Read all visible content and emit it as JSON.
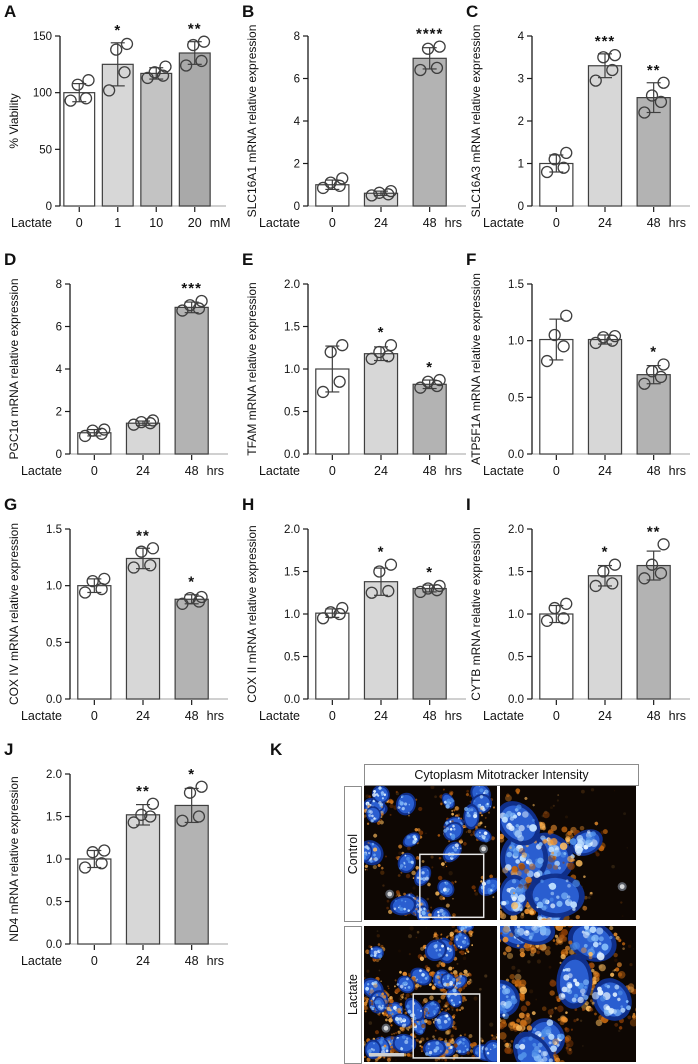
{
  "figure": {
    "background": "#ffffff",
    "bar_outline": "#3f3f3f",
    "baseline_color": "#b5b5b5"
  },
  "chart_data": [
    {
      "type": "bar",
      "panel": "A",
      "ylabel": "% Viability",
      "x_prefix": "Lactate",
      "x_unit": "mM",
      "categories": [
        "0",
        "1",
        "10",
        "20"
      ],
      "values": [
        100,
        125,
        117,
        135
      ],
      "errors": [
        8,
        19,
        5,
        10
      ],
      "points": [
        [
          93,
          95,
          107,
          111
        ],
        [
          102,
          118,
          138,
          143
        ],
        [
          113,
          115,
          118,
          123
        ],
        [
          124,
          128,
          142,
          145
        ]
      ],
      "sig": [
        "",
        "*",
        "",
        "**"
      ],
      "ylim": [
        0,
        150
      ],
      "yticks": [
        "0",
        "50",
        "100",
        "150"
      ],
      "bar_colors": [
        "#ffffff",
        "#d7d7d7",
        "#c3c3c3",
        "#a9a9a9"
      ]
    },
    {
      "type": "bar",
      "panel": "B",
      "ylabel": "SLC16A1 mRNA relative expression",
      "x_prefix": "Lactate",
      "x_unit": "hrs",
      "categories": [
        "0",
        "24",
        "48"
      ],
      "values": [
        1.0,
        0.6,
        6.95
      ],
      "errors": [
        0.22,
        0.1,
        0.5
      ],
      "points": [
        [
          0.85,
          0.95,
          1.1,
          1.3
        ],
        [
          0.5,
          0.55,
          0.62,
          0.7
        ],
        [
          6.4,
          6.5,
          7.4,
          7.5
        ]
      ],
      "sig": [
        "",
        "",
        "****"
      ],
      "ylim": [
        0,
        8
      ],
      "yticks": [
        "0",
        "2",
        "4",
        "6",
        "8"
      ],
      "bar_colors": [
        "#ffffff",
        "#d7d7d7",
        "#b3b3b3"
      ]
    },
    {
      "type": "bar",
      "panel": "C",
      "ylabel": "SLC16A3 mRNA relative expression",
      "x_prefix": "Lactate",
      "x_unit": "hrs",
      "categories": [
        "0",
        "24",
        "48"
      ],
      "values": [
        1.0,
        3.3,
        2.55
      ],
      "errors": [
        0.2,
        0.28,
        0.35
      ],
      "points": [
        [
          0.8,
          0.9,
          1.1,
          1.25
        ],
        [
          2.95,
          3.2,
          3.5,
          3.55
        ],
        [
          2.2,
          2.45,
          2.6,
          2.9
        ]
      ],
      "sig": [
        "",
        "***",
        "**"
      ],
      "ylim": [
        0,
        4
      ],
      "yticks": [
        "0",
        "1",
        "2",
        "3",
        "4"
      ],
      "bar_colors": [
        "#ffffff",
        "#d7d7d7",
        "#b3b3b3"
      ]
    },
    {
      "type": "bar",
      "panel": "D",
      "ylabel": "PGC1α mRNA relative expression",
      "x_prefix": "Lactate",
      "x_unit": "hrs",
      "categories": [
        "0",
        "24",
        "48"
      ],
      "values": [
        1.0,
        1.45,
        6.9
      ],
      "errors": [
        0.15,
        0.1,
        0.25
      ],
      "points": [
        [
          0.85,
          0.95,
          1.1,
          1.15
        ],
        [
          1.38,
          1.45,
          1.5,
          1.58
        ],
        [
          6.75,
          6.85,
          7.0,
          7.2
        ]
      ],
      "sig": [
        "",
        "",
        "***"
      ],
      "ylim": [
        0,
        8
      ],
      "yticks": [
        "0",
        "2",
        "4",
        "6",
        "8"
      ],
      "bar_colors": [
        "#ffffff",
        "#d7d7d7",
        "#b3b3b3"
      ]
    },
    {
      "type": "bar",
      "panel": "E",
      "ylabel": "TFAM mRNA relative expression",
      "x_prefix": "Lactate",
      "x_unit": "hrs",
      "categories": [
        "0",
        "24",
        "48"
      ],
      "values": [
        1.0,
        1.18,
        0.82
      ],
      "errors": [
        0.27,
        0.08,
        0.05
      ],
      "points": [
        [
          0.73,
          0.85,
          1.2,
          1.28
        ],
        [
          1.12,
          1.15,
          1.2,
          1.28
        ],
        [
          0.78,
          0.8,
          0.85,
          0.87
        ]
      ],
      "sig": [
        "",
        "*",
        "*"
      ],
      "ylim": [
        0,
        2
      ],
      "yticks": [
        "0.0",
        "0.5",
        "1.0",
        "1.5",
        "2.0"
      ],
      "bar_colors": [
        "#ffffff",
        "#d7d7d7",
        "#b3b3b3"
      ]
    },
    {
      "type": "bar",
      "panel": "F",
      "ylabel": "ATP5F1A mRNA relative expression",
      "x_prefix": "Lactate",
      "x_unit": "hrs",
      "categories": [
        "0",
        "24",
        "48"
      ],
      "values": [
        1.01,
        1.01,
        0.7
      ],
      "errors": [
        0.18,
        0.04,
        0.08
      ],
      "points": [
        [
          0.82,
          0.95,
          1.05,
          1.22
        ],
        [
          0.98,
          1.0,
          1.03,
          1.04
        ],
        [
          0.62,
          0.68,
          0.73,
          0.79
        ]
      ],
      "sig": [
        "",
        "",
        "*"
      ],
      "ylim": [
        0,
        1.5
      ],
      "yticks": [
        "0.0",
        "0.5",
        "1.0",
        "1.5"
      ],
      "bar_colors": [
        "#ffffff",
        "#d7d7d7",
        "#b3b3b3"
      ]
    },
    {
      "type": "bar",
      "panel": "G",
      "ylabel": "COX IV mRNA relative expression",
      "x_prefix": "Lactate",
      "x_unit": "hrs",
      "categories": [
        "0",
        "24",
        "48"
      ],
      "values": [
        1.0,
        1.24,
        0.88
      ],
      "errors": [
        0.06,
        0.09,
        0.04
      ],
      "points": [
        [
          0.94,
          0.97,
          1.04,
          1.06
        ],
        [
          1.16,
          1.18,
          1.3,
          1.33
        ],
        [
          0.84,
          0.86,
          0.89,
          0.9
        ]
      ],
      "sig": [
        "",
        "**",
        "*"
      ],
      "ylim": [
        0,
        1.5
      ],
      "yticks": [
        "0.0",
        "0.5",
        "1.0",
        "1.5"
      ],
      "bar_colors": [
        "#ffffff",
        "#d7d7d7",
        "#b3b3b3"
      ]
    },
    {
      "type": "bar",
      "panel": "H",
      "ylabel": "COX II mRNA relative expression",
      "x_prefix": "Lactate",
      "x_unit": "hrs",
      "categories": [
        "0",
        "24",
        "48"
      ],
      "values": [
        1.01,
        1.38,
        1.3
      ],
      "errors": [
        0.05,
        0.16,
        0.04
      ],
      "points": [
        [
          0.95,
          1.0,
          1.02,
          1.07
        ],
        [
          1.25,
          1.27,
          1.5,
          1.58
        ],
        [
          1.26,
          1.28,
          1.3,
          1.33
        ]
      ],
      "sig": [
        "",
        "*",
        "*"
      ],
      "ylim": [
        0,
        2
      ],
      "yticks": [
        "0.0",
        "0.5",
        "1.0",
        "1.5",
        "2.0"
      ],
      "bar_colors": [
        "#ffffff",
        "#d7d7d7",
        "#b3b3b3"
      ]
    },
    {
      "type": "bar",
      "panel": "I",
      "ylabel": "CYTB mRNA relative expression",
      "x_prefix": "Lactate",
      "x_unit": "hrs",
      "categories": [
        "0",
        "24",
        "48"
      ],
      "values": [
        1.0,
        1.45,
        1.57
      ],
      "errors": [
        0.1,
        0.12,
        0.17
      ],
      "points": [
        [
          0.92,
          0.95,
          1.07,
          1.12
        ],
        [
          1.33,
          1.36,
          1.5,
          1.58
        ],
        [
          1.42,
          1.48,
          1.58,
          1.82
        ]
      ],
      "sig": [
        "",
        "*",
        "**"
      ],
      "ylim": [
        0,
        2
      ],
      "yticks": [
        "0.0",
        "0.5",
        "1.0",
        "1.5",
        "2.0"
      ],
      "bar_colors": [
        "#ffffff",
        "#d7d7d7",
        "#b3b3b3"
      ]
    },
    {
      "type": "bar",
      "panel": "J",
      "ylabel": "ND4 mRNA relative expression",
      "x_prefix": "Lactate",
      "x_unit": "hrs",
      "categories": [
        "0",
        "24",
        "48"
      ],
      "values": [
        1.0,
        1.52,
        1.63
      ],
      "errors": [
        0.1,
        0.12,
        0.2
      ],
      "points": [
        [
          0.9,
          0.95,
          1.08,
          1.1
        ],
        [
          1.43,
          1.5,
          1.52,
          1.65
        ],
        [
          1.45,
          1.5,
          1.78,
          1.85
        ]
      ],
      "sig": [
        "",
        "**",
        "*"
      ],
      "ylim": [
        0,
        2
      ],
      "yticks": [
        "0.0",
        "0.5",
        "1.0",
        "1.5",
        "2.0"
      ],
      "bar_colors": [
        "#ffffff",
        "#d7d7d7",
        "#b3b3b3"
      ]
    }
  ],
  "panel_k": {
    "letter": "K",
    "title": "Cytoplasm Mitotracker Intensity",
    "row_labels": [
      "Control",
      "Lactate"
    ],
    "stain_colors": {
      "nuclei": "#2a5ed0",
      "mitotracker": "#e07b1a",
      "background": "#0e0703"
    }
  }
}
